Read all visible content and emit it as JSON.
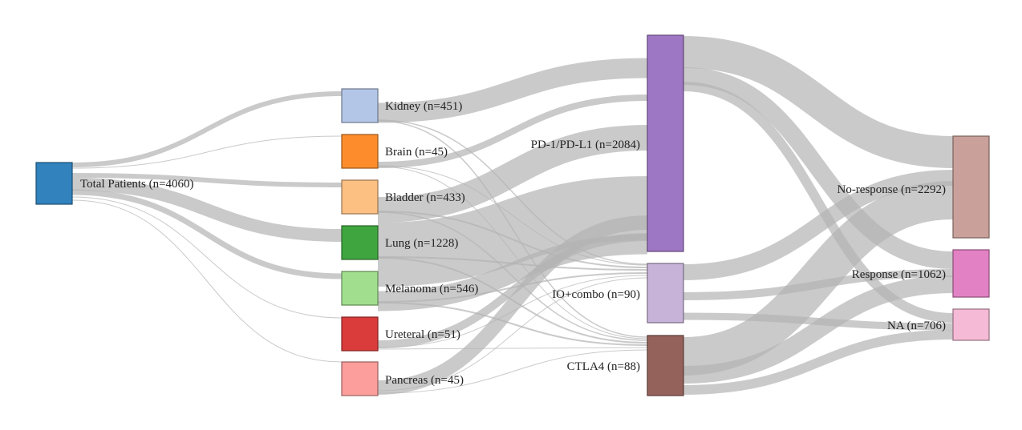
{
  "diagram": {
    "type": "sankey",
    "nodes": [
      {
        "id": "total",
        "label": "Total Patients (n=4060)",
        "color": "#3182bd",
        "column": 0
      },
      {
        "id": "kidney",
        "label": "Kidney (n=451)",
        "color": "#b3c6e8",
        "column": 1
      },
      {
        "id": "brain",
        "label": "Brain (n=45)",
        "color": "#fd8d2c",
        "column": 1
      },
      {
        "id": "bladder",
        "label": "Bladder (n=433)",
        "color": "#fdc083",
        "column": 1
      },
      {
        "id": "lung",
        "label": "Lung (n=1228)",
        "color": "#3fa63f",
        "column": 1
      },
      {
        "id": "melanoma",
        "label": "Melanoma (n=546)",
        "color": "#a1df8e",
        "column": 1
      },
      {
        "id": "ureteral",
        "label": "Ureteral (n=51)",
        "color": "#da3b3b",
        "column": 1
      },
      {
        "id": "pancreas",
        "label": "Pancreas (n=45)",
        "color": "#fc9e9c",
        "column": 1
      },
      {
        "id": "pd1",
        "label": "PD-1/PD-L1 (n=2084)",
        "color": "#9e77c4",
        "column": 2
      },
      {
        "id": "iocombo",
        "label": "IO+combo (n=90)",
        "color": "#c7b2d8",
        "column": 2
      },
      {
        "id": "ctla4",
        "label": "CTLA4 (n=88)",
        "color": "#94625a",
        "column": 2
      },
      {
        "id": "noresp",
        "label": "No-response (n=2292)",
        "color": "#c9a09a",
        "column": 3
      },
      {
        "id": "resp",
        "label": "Response (n=1062)",
        "color": "#e381c5",
        "column": 3
      },
      {
        "id": "na",
        "label": "NA (n=706)",
        "color": "#f5bad5",
        "column": 3
      }
    ]
  }
}
